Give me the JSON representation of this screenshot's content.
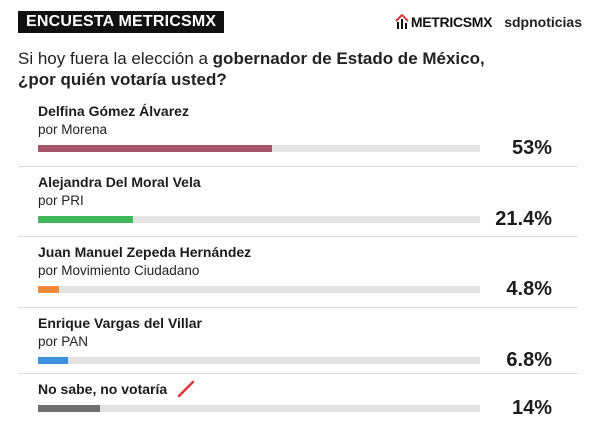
{
  "header": {
    "badge": "ENCUESTA METRICSMX",
    "brand_logo": "METRICSMX",
    "brand_partner": "sdpnoticias"
  },
  "question": {
    "prefix": "Si hoy fuera la elección a ",
    "strong": "gobernador de Estado de México,",
    "line2": "¿por quién votaría usted?"
  },
  "chart_data": {
    "type": "bar",
    "orientation": "horizontal",
    "title": "Si hoy fuera la elección a gobernador de Estado de México, ¿por quién votaría usted?",
    "categories": [
      "Delfina Gómez Álvarez",
      "Alejandra Del Moral Vela",
      "Juan Manuel Zepeda Hernández",
      "Enrique Vargas del Villar",
      "No sabe, no votaría"
    ],
    "values": [
      53,
      21.4,
      4.8,
      6.8,
      14
    ],
    "value_unit": "%",
    "xlim": [
      0,
      100
    ],
    "rows": [
      {
        "name": "Delfina Gómez Álvarez",
        "party": "por Morena",
        "value": 53,
        "label": "53%",
        "color": "#a5566b"
      },
      {
        "name": "Alejandra Del Moral Vela",
        "party": "por PRI",
        "value": 21.4,
        "label": "21.4%",
        "color": "#3fb95c"
      },
      {
        "name": "Juan Manuel Zepeda Hernández",
        "party": "por Movimiento Ciudadano",
        "value": 4.8,
        "label": "4.8%",
        "color": "#ef8a3c"
      },
      {
        "name": "Enrique Vargas del Villar",
        "party": "por PAN",
        "value": 6.8,
        "label": "6.8%",
        "color": "#3d92e0"
      },
      {
        "name": "No sabe, no votaría",
        "party": "",
        "value": 14,
        "label": "14%",
        "color": "#6f6f6f"
      }
    ],
    "track_color": "#e3e3e3",
    "grid": false,
    "legend": "none"
  },
  "icons": {
    "nosabe_mark": "red-slash-icon",
    "brand_mark": "house-chart-icon"
  },
  "colors": {
    "badge_bg": "#111111",
    "mark_red": "#d83a3a"
  }
}
